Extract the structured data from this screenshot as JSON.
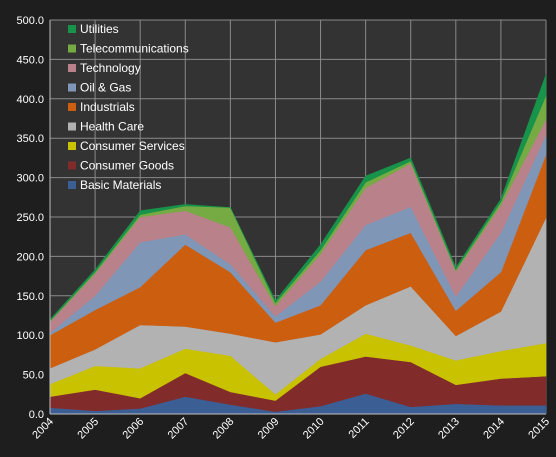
{
  "chart_data": {
    "type": "area",
    "stacked": true,
    "x": [
      "2004",
      "2005",
      "2006",
      "2007",
      "2008",
      "2009",
      "2010",
      "2011",
      "2012",
      "2013",
      "2014",
      "2015"
    ],
    "ylim": [
      0,
      500
    ],
    "yticks": [
      0,
      50,
      100,
      150,
      200,
      250,
      300,
      350,
      400,
      450,
      500
    ],
    "ytick_labels": [
      "0.0",
      "50.0",
      "100.0",
      "150.0",
      "200.0",
      "250.0",
      "300.0",
      "350.0",
      "400.0",
      "450.0",
      "500.0"
    ],
    "grid": true,
    "legend_position": "top-left",
    "series": [
      {
        "name": "Basic Materials",
        "color": "#3b5f94",
        "values": [
          8,
          4,
          7,
          22,
          12,
          3,
          10,
          26,
          9,
          13,
          11,
          11
        ]
      },
      {
        "name": "Consumer Goods",
        "color": "#822b2b",
        "values": [
          14,
          27,
          13,
          30,
          16,
          14,
          50,
          47,
          57,
          24,
          34,
          37
        ]
      },
      {
        "name": "Consumer Services",
        "color": "#c9c200",
        "values": [
          16,
          30,
          38,
          31,
          46,
          8,
          10,
          29,
          21,
          31,
          35,
          42
        ]
      },
      {
        "name": "Health Care",
        "color": "#b2b2b2",
        "values": [
          20,
          21,
          55,
          28,
          28,
          66,
          31,
          36,
          75,
          31,
          50,
          159
        ]
      },
      {
        "name": "Industrials",
        "color": "#cc5e10",
        "values": [
          42,
          50,
          48,
          104,
          78,
          25,
          37,
          70,
          68,
          32,
          50,
          80
        ]
      },
      {
        "name": "Oil & Gas",
        "color": "#7f96b6",
        "values": [
          3,
          18,
          57,
          13,
          10,
          8,
          30,
          32,
          33,
          18,
          50,
          25
        ]
      },
      {
        "name": "Technology",
        "color": "#b9818a",
        "values": [
          14,
          28,
          32,
          30,
          47,
          13,
          35,
          47,
          55,
          32,
          35,
          20
        ]
      },
      {
        "name": "Telecommunications",
        "color": "#76ab43",
        "values": [
          1,
          2,
          3,
          6,
          25,
          4,
          5,
          7,
          3,
          2,
          4,
          30
        ]
      },
      {
        "name": "Utilities",
        "color": "#17934a",
        "values": [
          2,
          3,
          5,
          2,
          0,
          3,
          7,
          8,
          4,
          3,
          4,
          27
        ]
      }
    ]
  }
}
